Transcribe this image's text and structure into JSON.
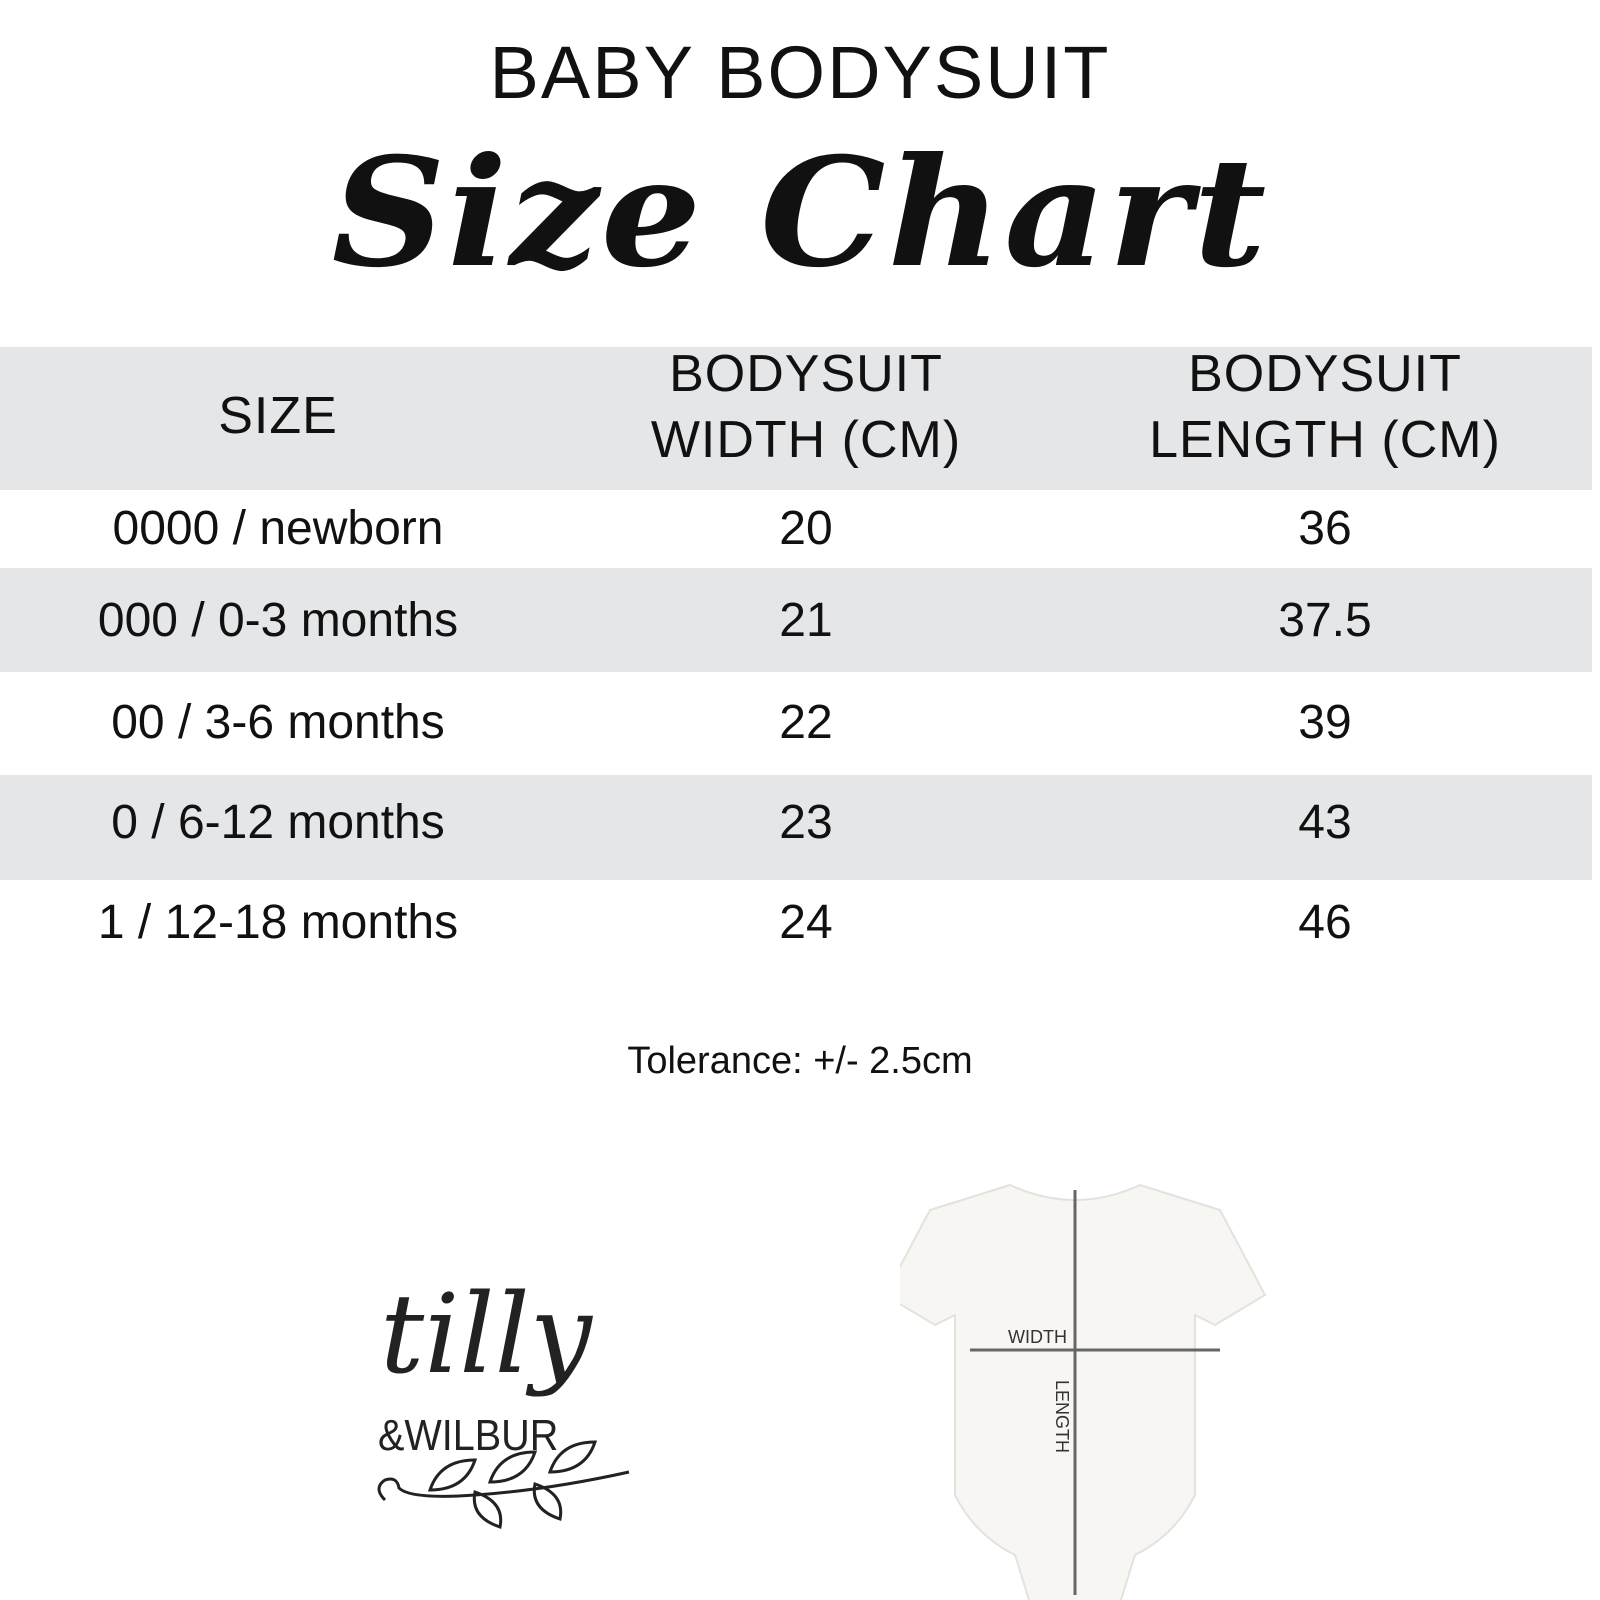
{
  "title": {
    "line1": "BABY BODYSUIT",
    "line2": "Size Chart"
  },
  "table": {
    "headers": [
      [
        "SIZE"
      ],
      [
        "BODYSUIT",
        "WIDTH (CM)"
      ],
      [
        "BODYSUIT",
        "LENGTH (CM)"
      ]
    ],
    "rows": [
      [
        "0000 / newborn",
        "20",
        "36"
      ],
      [
        "000 / 0-3 months",
        "21",
        "37.5"
      ],
      [
        "00 / 3-6 months",
        "22",
        "39"
      ],
      [
        "0 / 6-12 months",
        "23",
        "43"
      ],
      [
        "1 / 12-18 months",
        "24",
        "46"
      ]
    ],
    "band_color": "#e5e6e8"
  },
  "tolerance": "Tolerance: +/- 2.5cm",
  "logo": {
    "line1": "tilly",
    "line2": "&WILBUR"
  },
  "diagram": {
    "width_label": "WIDTH",
    "length_label": "LENGTH"
  }
}
